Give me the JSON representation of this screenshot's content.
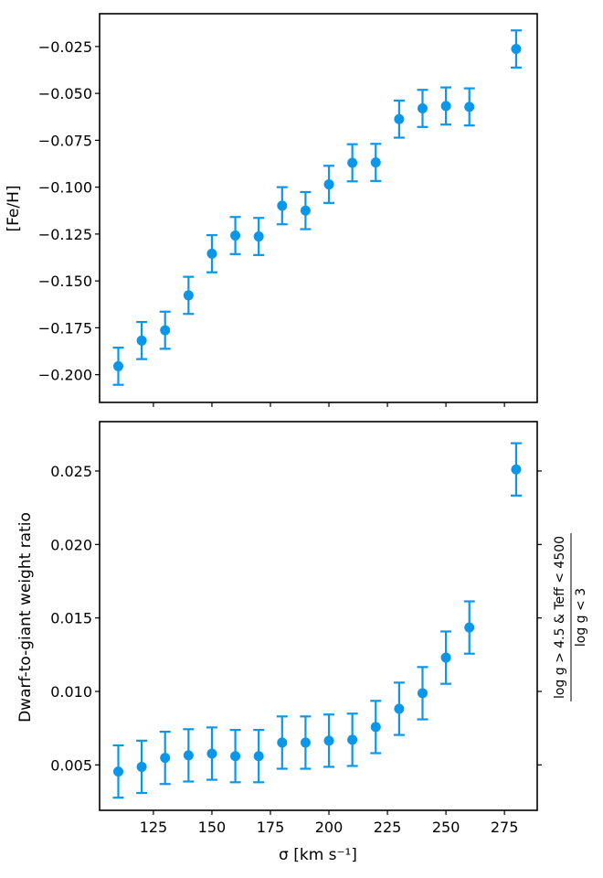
{
  "figure": {
    "marker_color": "#0a97ea"
  },
  "chart_data": [
    {
      "type": "scatter",
      "panel": "top",
      "title": "",
      "xlabel": "",
      "ylabel": "[Fe/H]",
      "xlim": [
        102,
        289
      ],
      "ylim": [
        -0.2148,
        -0.0075
      ],
      "xticks": [
        125,
        150,
        175,
        200,
        225,
        250,
        275
      ],
      "xtick_labels_visible": false,
      "yticks": [
        -0.2,
        -0.175,
        -0.15,
        -0.125,
        -0.1,
        -0.075,
        -0.05,
        -0.025
      ],
      "ytick_labels": [
        "−0.200",
        "−0.175",
        "−0.150",
        "−0.125",
        "−0.100",
        "−0.075",
        "−0.050",
        "−0.025"
      ],
      "grid": false,
      "series": [
        {
          "x": [
            110,
            120,
            130,
            140,
            150,
            160,
            170,
            180,
            190,
            200,
            210,
            220,
            230,
            240,
            250,
            260,
            280
          ],
          "y": [
            -0.1955,
            -0.1818,
            -0.1763,
            -0.1577,
            -0.1355,
            -0.1258,
            -0.1263,
            -0.1099,
            -0.1125,
            -0.0985,
            -0.087,
            -0.0868,
            -0.0637,
            -0.058,
            -0.0567,
            -0.0572,
            -0.0263
          ],
          "yerr": [
            0.0099,
            0.0099,
            0.0099,
            0.0099,
            0.0099,
            0.0099,
            0.0099,
            0.0099,
            0.0099,
            0.0099,
            0.0099,
            0.0099,
            0.0099,
            0.0099,
            0.0099,
            0.0099,
            0.0099
          ]
        }
      ]
    },
    {
      "type": "scatter",
      "panel": "bottom",
      "title": "",
      "xlabel": "σ [km s⁻¹]",
      "ylabel": "Dwarf-to-giant weight ratio",
      "xlim": [
        102,
        289
      ],
      "ylim": [
        0.00191,
        0.02836
      ],
      "xticks": [
        125,
        150,
        175,
        200,
        225,
        250,
        275
      ],
      "xtick_labels": [
        "125",
        "150",
        "175",
        "200",
        "225",
        "250",
        "275"
      ],
      "yticks": [
        0.005,
        0.01,
        0.015,
        0.02,
        0.025
      ],
      "ytick_labels": [
        "0.005",
        "0.010",
        "0.015",
        "0.020",
        "0.025"
      ],
      "right_axis_label_numerator": "log g > 4.5 & Teff < 4500",
      "right_axis_label_denominator": "log g < 3",
      "grid": false,
      "series": [
        {
          "x": [
            110,
            120,
            130,
            140,
            150,
            160,
            170,
            180,
            190,
            200,
            210,
            220,
            230,
            240,
            250,
            260,
            280
          ],
          "y": [
            0.00455,
            0.00487,
            0.00548,
            0.00565,
            0.00577,
            0.0056,
            0.0056,
            0.00652,
            0.00652,
            0.00665,
            0.00671,
            0.00758,
            0.00882,
            0.00988,
            0.0123,
            0.01435,
            0.02511
          ],
          "yerr": [
            0.00178,
            0.00178,
            0.00178,
            0.00178,
            0.00178,
            0.00178,
            0.00178,
            0.00178,
            0.00178,
            0.00178,
            0.00178,
            0.00178,
            0.00178,
            0.00178,
            0.00178,
            0.00178,
            0.00178
          ]
        }
      ]
    }
  ]
}
